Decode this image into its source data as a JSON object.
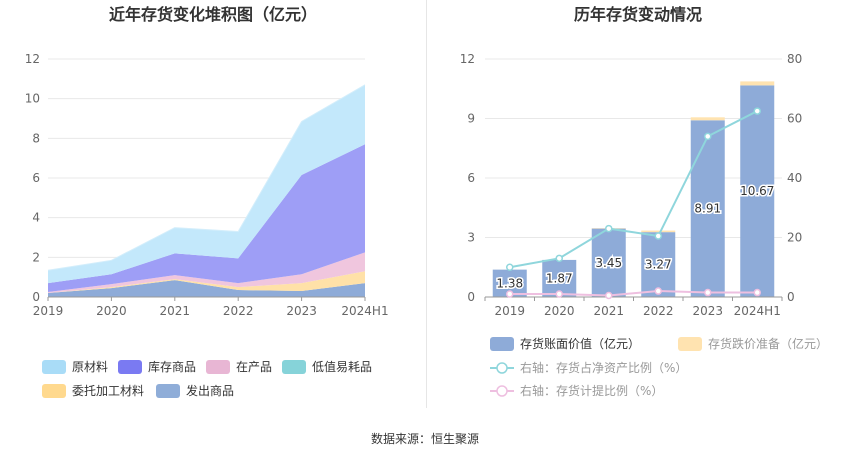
{
  "source_label": "数据来源：恒生聚源",
  "chart_data": [
    {
      "type": "area",
      "stacked": true,
      "title": "近年存货变化堆积图（亿元）",
      "categories": [
        "2019",
        "2020",
        "2021",
        "2022",
        "2023",
        "2024H1"
      ],
      "ylim": [
        0,
        12
      ],
      "yticks": [
        "0",
        "2",
        "4",
        "6",
        "8",
        "10",
        "12"
      ],
      "grid": true,
      "legend_position": "bottom",
      "series": [
        {
          "name": "发出商品",
          "color": "#8eabd8",
          "values": [
            0.2,
            0.45,
            0.85,
            0.35,
            0.3,
            0.7
          ]
        },
        {
          "name": "委托加工材料",
          "color": "#ffe1a8",
          "values": [
            0.0,
            0.05,
            0.05,
            0.15,
            0.4,
            0.6
          ]
        },
        {
          "name": "低值易耗品",
          "color": "#8fd8df",
          "values": [
            0.0,
            0.0,
            0.0,
            0.0,
            0.0,
            0.0
          ]
        },
        {
          "name": "在产品",
          "color": "#f0c6de",
          "values": [
            0.05,
            0.15,
            0.2,
            0.2,
            0.45,
            0.95
          ]
        },
        {
          "name": "库存商品",
          "color": "#9e9ef6",
          "values": [
            0.45,
            0.5,
            1.1,
            1.25,
            5.0,
            5.45
          ]
        },
        {
          "name": "原材料",
          "color": "#c3e8fb",
          "values": [
            0.65,
            0.7,
            1.3,
            1.35,
            2.7,
            3.0
          ]
        }
      ],
      "legend": [
        {
          "name": "原材料",
          "color": "#a9dcf7"
        },
        {
          "name": "库存商品",
          "color": "#7a7af2"
        },
        {
          "name": "在产品",
          "color": "#e8b6d4"
        },
        {
          "name": "低值易耗品",
          "color": "#86d3d9"
        },
        {
          "name": "委托加工材料",
          "color": "#ffd98e"
        },
        {
          "name": "发出商品",
          "color": "#8fadd8"
        }
      ]
    },
    {
      "type": "bar",
      "title": "历年存货变动情况",
      "categories": [
        "2019",
        "2020",
        "2021",
        "2022",
        "2023",
        "2024H1"
      ],
      "ylim": [
        0,
        12
      ],
      "yticks": [
        "0",
        "3",
        "6",
        "9",
        "12"
      ],
      "y2lim": [
        0,
        80
      ],
      "y2ticks": [
        "0",
        "20",
        "40",
        "60",
        "80"
      ],
      "grid": true,
      "legend_position": "bottom",
      "series": [
        {
          "name": "存货账面价值（亿元）",
          "axis": "left",
          "kind": "bar",
          "color": "#8eabd8",
          "values": [
            1.38,
            1.87,
            3.45,
            3.27,
            8.91,
            10.67
          ],
          "labels": [
            "1.38",
            "1.87",
            "3.45",
            "3.27",
            "8.91",
            "10.67"
          ]
        },
        {
          "name": "存货跌价准备（亿元）",
          "axis": "left",
          "kind": "bar",
          "color": "#ffe3b0",
          "values": [
            0.0,
            0.0,
            0.02,
            0.08,
            0.15,
            0.2
          ]
        },
        {
          "name": "右轴：存货占净资产比例（%）",
          "axis": "right",
          "kind": "line",
          "color": "#8fd6dc",
          "values": [
            10.0,
            13.0,
            23.0,
            20.5,
            54.0,
            62.5
          ]
        },
        {
          "name": "右轴：存货计提比例（%）",
          "axis": "right",
          "kind": "line",
          "color": "#eebfe0",
          "values": [
            1.0,
            1.0,
            0.5,
            2.0,
            1.5,
            1.5
          ]
        }
      ]
    }
  ]
}
